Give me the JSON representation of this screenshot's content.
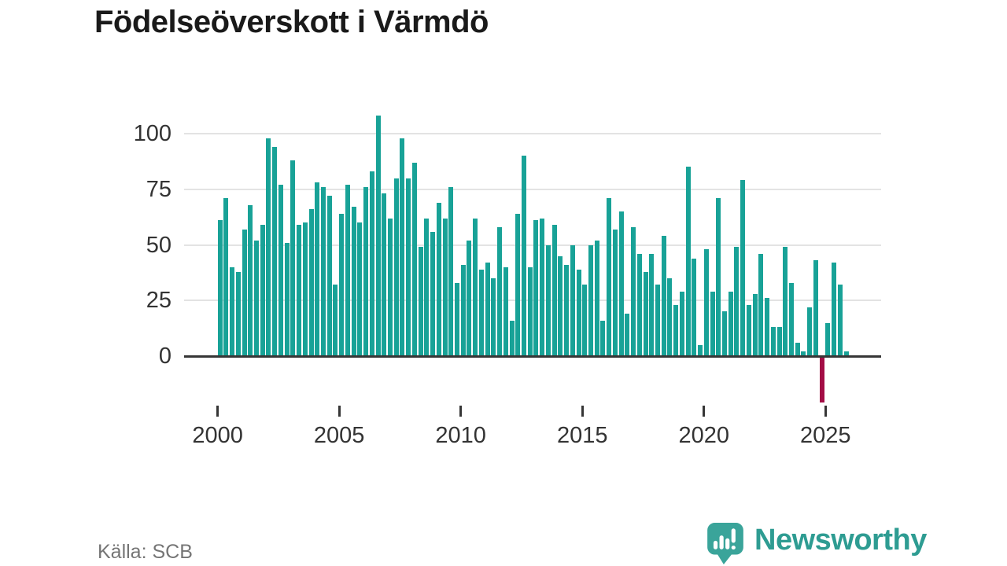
{
  "title": "Födelseöverskott i Värmdö",
  "source": "Källa: SCB",
  "branding": {
    "name": "Newsworthy",
    "icon": "bar-chart-speech-bubble"
  },
  "colors": {
    "bar": "#18a297",
    "negative_bar": "#a30d45",
    "axis": "#363636",
    "gridline": "#e3e3e3",
    "title_text": "#1a1a1a",
    "axis_text": "#333333",
    "source_text": "#757575",
    "brand_teal": "#2e9c92"
  },
  "chart_data": {
    "type": "bar",
    "title": "Födelseöverskott i Värmdö",
    "frequency": "quarterly",
    "x_start": "2000-Q1",
    "x_end": "2025-Q4",
    "categories_note": "104 consecutive quarters from 2000 Q1 to 2025 Q4",
    "values": [
      61,
      71,
      40,
      38,
      57,
      68,
      52,
      59,
      98,
      94,
      77,
      51,
      88,
      59,
      60,
      66,
      78,
      76,
      72,
      32,
      64,
      77,
      67,
      60,
      76,
      83,
      108,
      73,
      62,
      80,
      98,
      80,
      87,
      49,
      62,
      56,
      69,
      62,
      76,
      33,
      41,
      52,
      62,
      39,
      42,
      35,
      58,
      40,
      16,
      64,
      90,
      40,
      61,
      62,
      50,
      59,
      45,
      41,
      50,
      39,
      32,
      50,
      52,
      16,
      71,
      57,
      65,
      19,
      58,
      46,
      38,
      46,
      32,
      54,
      35,
      23,
      29,
      85,
      44,
      5,
      48,
      29,
      71,
      20,
      29,
      49,
      79,
      23,
      28,
      46,
      26,
      13,
      13,
      49,
      33,
      6,
      2,
      22,
      43,
      -20,
      15,
      42,
      32,
      2
    ],
    "highlight": {
      "index": 99,
      "period": "2024-Q4",
      "value": -20,
      "color": "#a30d45"
    },
    "yticks": [
      0,
      25,
      50,
      75,
      100
    ],
    "xticks": [
      "2000",
      "2005",
      "2010",
      "2015",
      "2020",
      "2025"
    ],
    "ylim": [
      -25,
      112
    ],
    "grid": true,
    "legend": false,
    "xlabel": "",
    "ylabel": ""
  }
}
